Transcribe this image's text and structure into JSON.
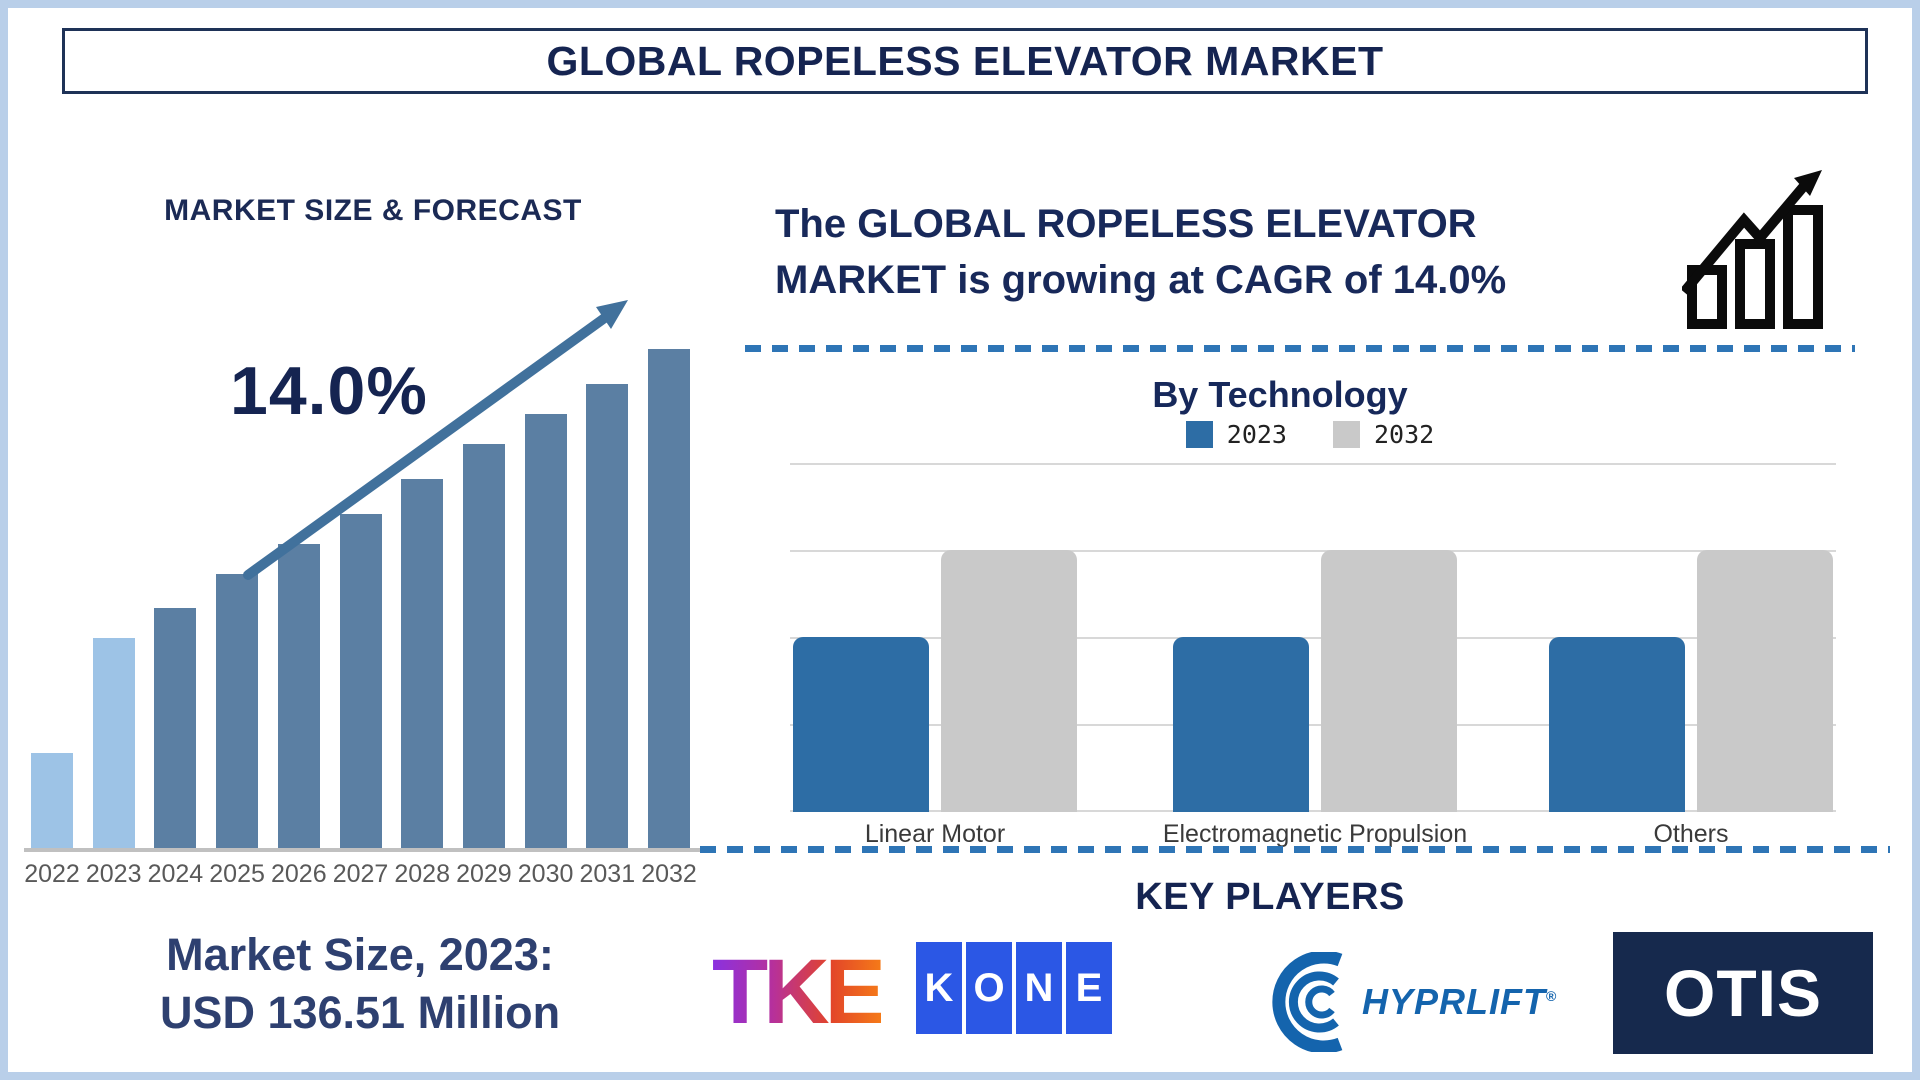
{
  "page_title": "GLOBAL ROPELESS ELEVATOR MARKET",
  "left_panel": {
    "heading": "MARKET SIZE & FORECAST",
    "cagr_annotation": "14.0%",
    "market_size_caption_line1": "Market Size, 2023:",
    "market_size_caption_line2": "USD 136.51 Million"
  },
  "right_panel": {
    "growth_statement_line1": "The GLOBAL ROPELESS ELEVATOR",
    "growth_statement_line2": "MARKET is growing at CAGR of 14.0%",
    "section_by_technology_title": "By Technology",
    "legend": {
      "items": [
        {
          "label": "2023",
          "color": "#2d6da5"
        },
        {
          "label": "2032",
          "color": "#c9c9c9"
        }
      ]
    },
    "key_players_title": "KEY PLAYERS",
    "key_players": [
      {
        "name": "TKE",
        "logo_text": "TKE"
      },
      {
        "name": "KONE",
        "logo_letters": [
          "K",
          "O",
          "N",
          "E"
        ]
      },
      {
        "name": "HYPRLIFT",
        "logo_text": "HYPRLIFT",
        "registered_mark": "®"
      },
      {
        "name": "OTIS",
        "logo_text": "OTIS"
      }
    ]
  },
  "chart_data": [
    {
      "id": "market-size-forecast",
      "type": "bar",
      "title": "MARKET SIZE & FORECAST",
      "categories": [
        "2022",
        "2023",
        "2024",
        "2025",
        "2026",
        "2027",
        "2028",
        "2029",
        "2030",
        "2031",
        "2032"
      ],
      "values": [
        19,
        42,
        48,
        55,
        61,
        67,
        74,
        81,
        87,
        93,
        100
      ],
      "values_unit": "% of tallest bar (stylized chart, no numeric axis shown)",
      "annotation": "14.0%",
      "market_size_2023": "USD 136.51 Million",
      "highlighted_categories": [
        "2022",
        "2023"
      ],
      "bar_color": "#5b7fa3",
      "highlight_color": "#9dc3e6",
      "axis_line_color": "#c0c0c0",
      "tick_label_color": "#595959",
      "grid": false,
      "legend_position": "none"
    },
    {
      "id": "by-technology",
      "type": "grouped-bar",
      "title": "By Technology",
      "categories": [
        "Linear Motor",
        "Electromagnetic Propulsion",
        "Others"
      ],
      "series": [
        {
          "name": "2023",
          "color": "#2d6da5",
          "values": [
            50,
            50,
            50
          ]
        },
        {
          "name": "2032",
          "color": "#c9c9c9",
          "values": [
            75,
            75,
            75
          ]
        }
      ],
      "values_unit": "% of plot height (no numeric axis shown)",
      "grid": true,
      "gridline_color": "#d8d8d8",
      "legend_position": "top"
    }
  ],
  "colors": {
    "outer_frame": "#b9cfe9",
    "navy_heading": "#152451",
    "steel_blue_bar": "#5b7fa3",
    "light_blue_bar": "#9dc3e6",
    "arrow_blue": "#41719c",
    "dashed_separator": "#2e75b6",
    "tech_blue_bar": "#2d6da5",
    "tech_gray_bar": "#c9c9c9",
    "kone_blue": "#2b57e5",
    "hyprlift_blue": "#1464ad",
    "otis_navy": "#16294d"
  }
}
